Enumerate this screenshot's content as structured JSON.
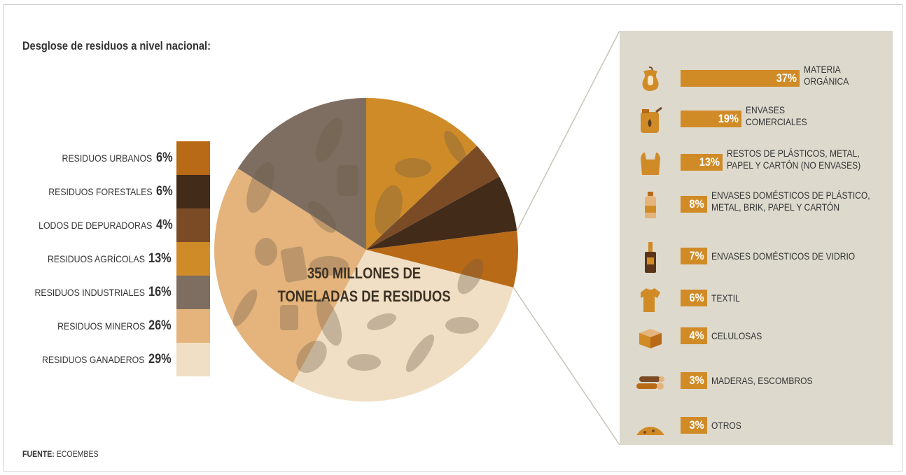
{
  "title": "Desglose de residuos a nivel nacional:",
  "center_label_line1": "350  MILLONES DE",
  "center_label_line2": "TONELADAS DE RESIDUOS",
  "source": {
    "label": "FUENTE:",
    "value": " ECOEMBES"
  },
  "colors": {
    "urbanos": "#b86a17",
    "forestales": "#432b1a",
    "lodos": "#7a4b25",
    "agricolas": "#cf8b28",
    "industriales": "#7e6e61",
    "mineros": "#e4b47c",
    "ganaderos": "#f0dfc4",
    "panel": "#ddd9cd",
    "bar": "#d08b27"
  },
  "chart_data": [
    {
      "type": "pie",
      "title": "Desglose de residuos a nivel nacional:",
      "categories": [
        "RESIDUOS URBANOS",
        "RESIDUOS FORESTALES",
        "LODOS DE DEPURADORAS",
        "RESIDUOS AGRÍCOLAS",
        "RESIDUOS INDUSTRIALES",
        "RESIDUOS MINEROS",
        "RESIDUOS GANADEROS"
      ],
      "values": [
        6,
        6,
        4,
        13,
        16,
        26,
        29
      ],
      "labels": [
        "6%",
        "6%",
        "4%",
        "13%",
        "16%",
        "26%",
        "29%"
      ],
      "center_label": "350  MILLONES DE TONELADAS DE RESIDUOS",
      "legend_placement": "left"
    },
    {
      "type": "bar",
      "orientation": "horizontal",
      "parent_category": "RESIDUOS URBANOS",
      "categories": [
        "MATERIA ORGÁNICA",
        "ENVASES COMERCIALES",
        "RESTOS DE PLÁSTICOS, METAL, PAPEL Y CARTÓN (NO ENVASES)",
        "ENVASES DOMÉSTICOS DE PLÁSTICO, METAL, BRIK, PAPEL Y CARTÓN",
        "ENVASES DOMÉSTICOS DE VIDRIO",
        "TEXTIL",
        "CELULOSAS",
        "MADERAS, ESCOMBROS",
        "OTROS"
      ],
      "values": [
        37,
        19,
        13,
        8,
        7,
        6,
        4,
        3,
        3
      ],
      "labels": [
        "37%",
        "19%",
        "13%",
        "8%",
        "7%",
        "6%",
        "4%",
        "3%",
        "3%"
      ]
    }
  ],
  "legend": [
    {
      "name": "RESIDUOS URBANOS",
      "value": "6%",
      "color": "#b86a17"
    },
    {
      "name": "RESIDUOS FORESTALES",
      "value": "6%",
      "color": "#432b1a"
    },
    {
      "name": "LODOS DE DEPURADORAS",
      "value": "4%",
      "color": "#7a4b25"
    },
    {
      "name": "RESIDUOS AGRÍCOLAS",
      "value": "13%",
      "color": "#cf8b28"
    },
    {
      "name": "RESIDUOS INDUSTRIALES",
      "value": "16%",
      "color": "#7e6e61"
    },
    {
      "name": "RESIDUOS MINEROS",
      "value": "26%",
      "color": "#e4b47c"
    },
    {
      "name": "RESIDUOS GANADEROS",
      "value": "29%",
      "color": "#f0dfc4"
    }
  ],
  "panel_items": [
    {
      "value": "37%",
      "label_lines": [
        "MATERIA",
        "ORGÁNICA"
      ],
      "icon": "apple-core-icon"
    },
    {
      "value": "19%",
      "label_lines": [
        "ENVASES",
        "COMERCIALES"
      ],
      "icon": "jerrycan-icon"
    },
    {
      "value": "13%",
      "label_lines": [
        "RESTOS DE PLÁSTICOS, METAL,",
        "PAPEL Y CARTÓN (NO ENVASES)"
      ],
      "icon": "plastic-bag-icon"
    },
    {
      "value": "8%",
      "label_lines": [
        "ENVASES DOMÉSTICOS DE PLÁSTICO,",
        "METAL, BRIK, PAPEL Y CARTÓN"
      ],
      "icon": "plastic-bottle-icon"
    },
    {
      "value": "7%",
      "label_lines": [
        "ENVASES DOMÉSTICOS DE VIDRIO"
      ],
      "icon": "glass-bottle-icon"
    },
    {
      "value": "6%",
      "label_lines": [
        "TEXTIL"
      ],
      "icon": "tshirt-icon"
    },
    {
      "value": "4%",
      "label_lines": [
        "CELULOSAS"
      ],
      "icon": "cardboard-box-icon"
    },
    {
      "value": "3%",
      "label_lines": [
        "MADERAS, ESCOMBROS"
      ],
      "icon": "logs-icon"
    },
    {
      "value": "3%",
      "label_lines": [
        "OTROS"
      ],
      "icon": "pile-icon"
    }
  ]
}
